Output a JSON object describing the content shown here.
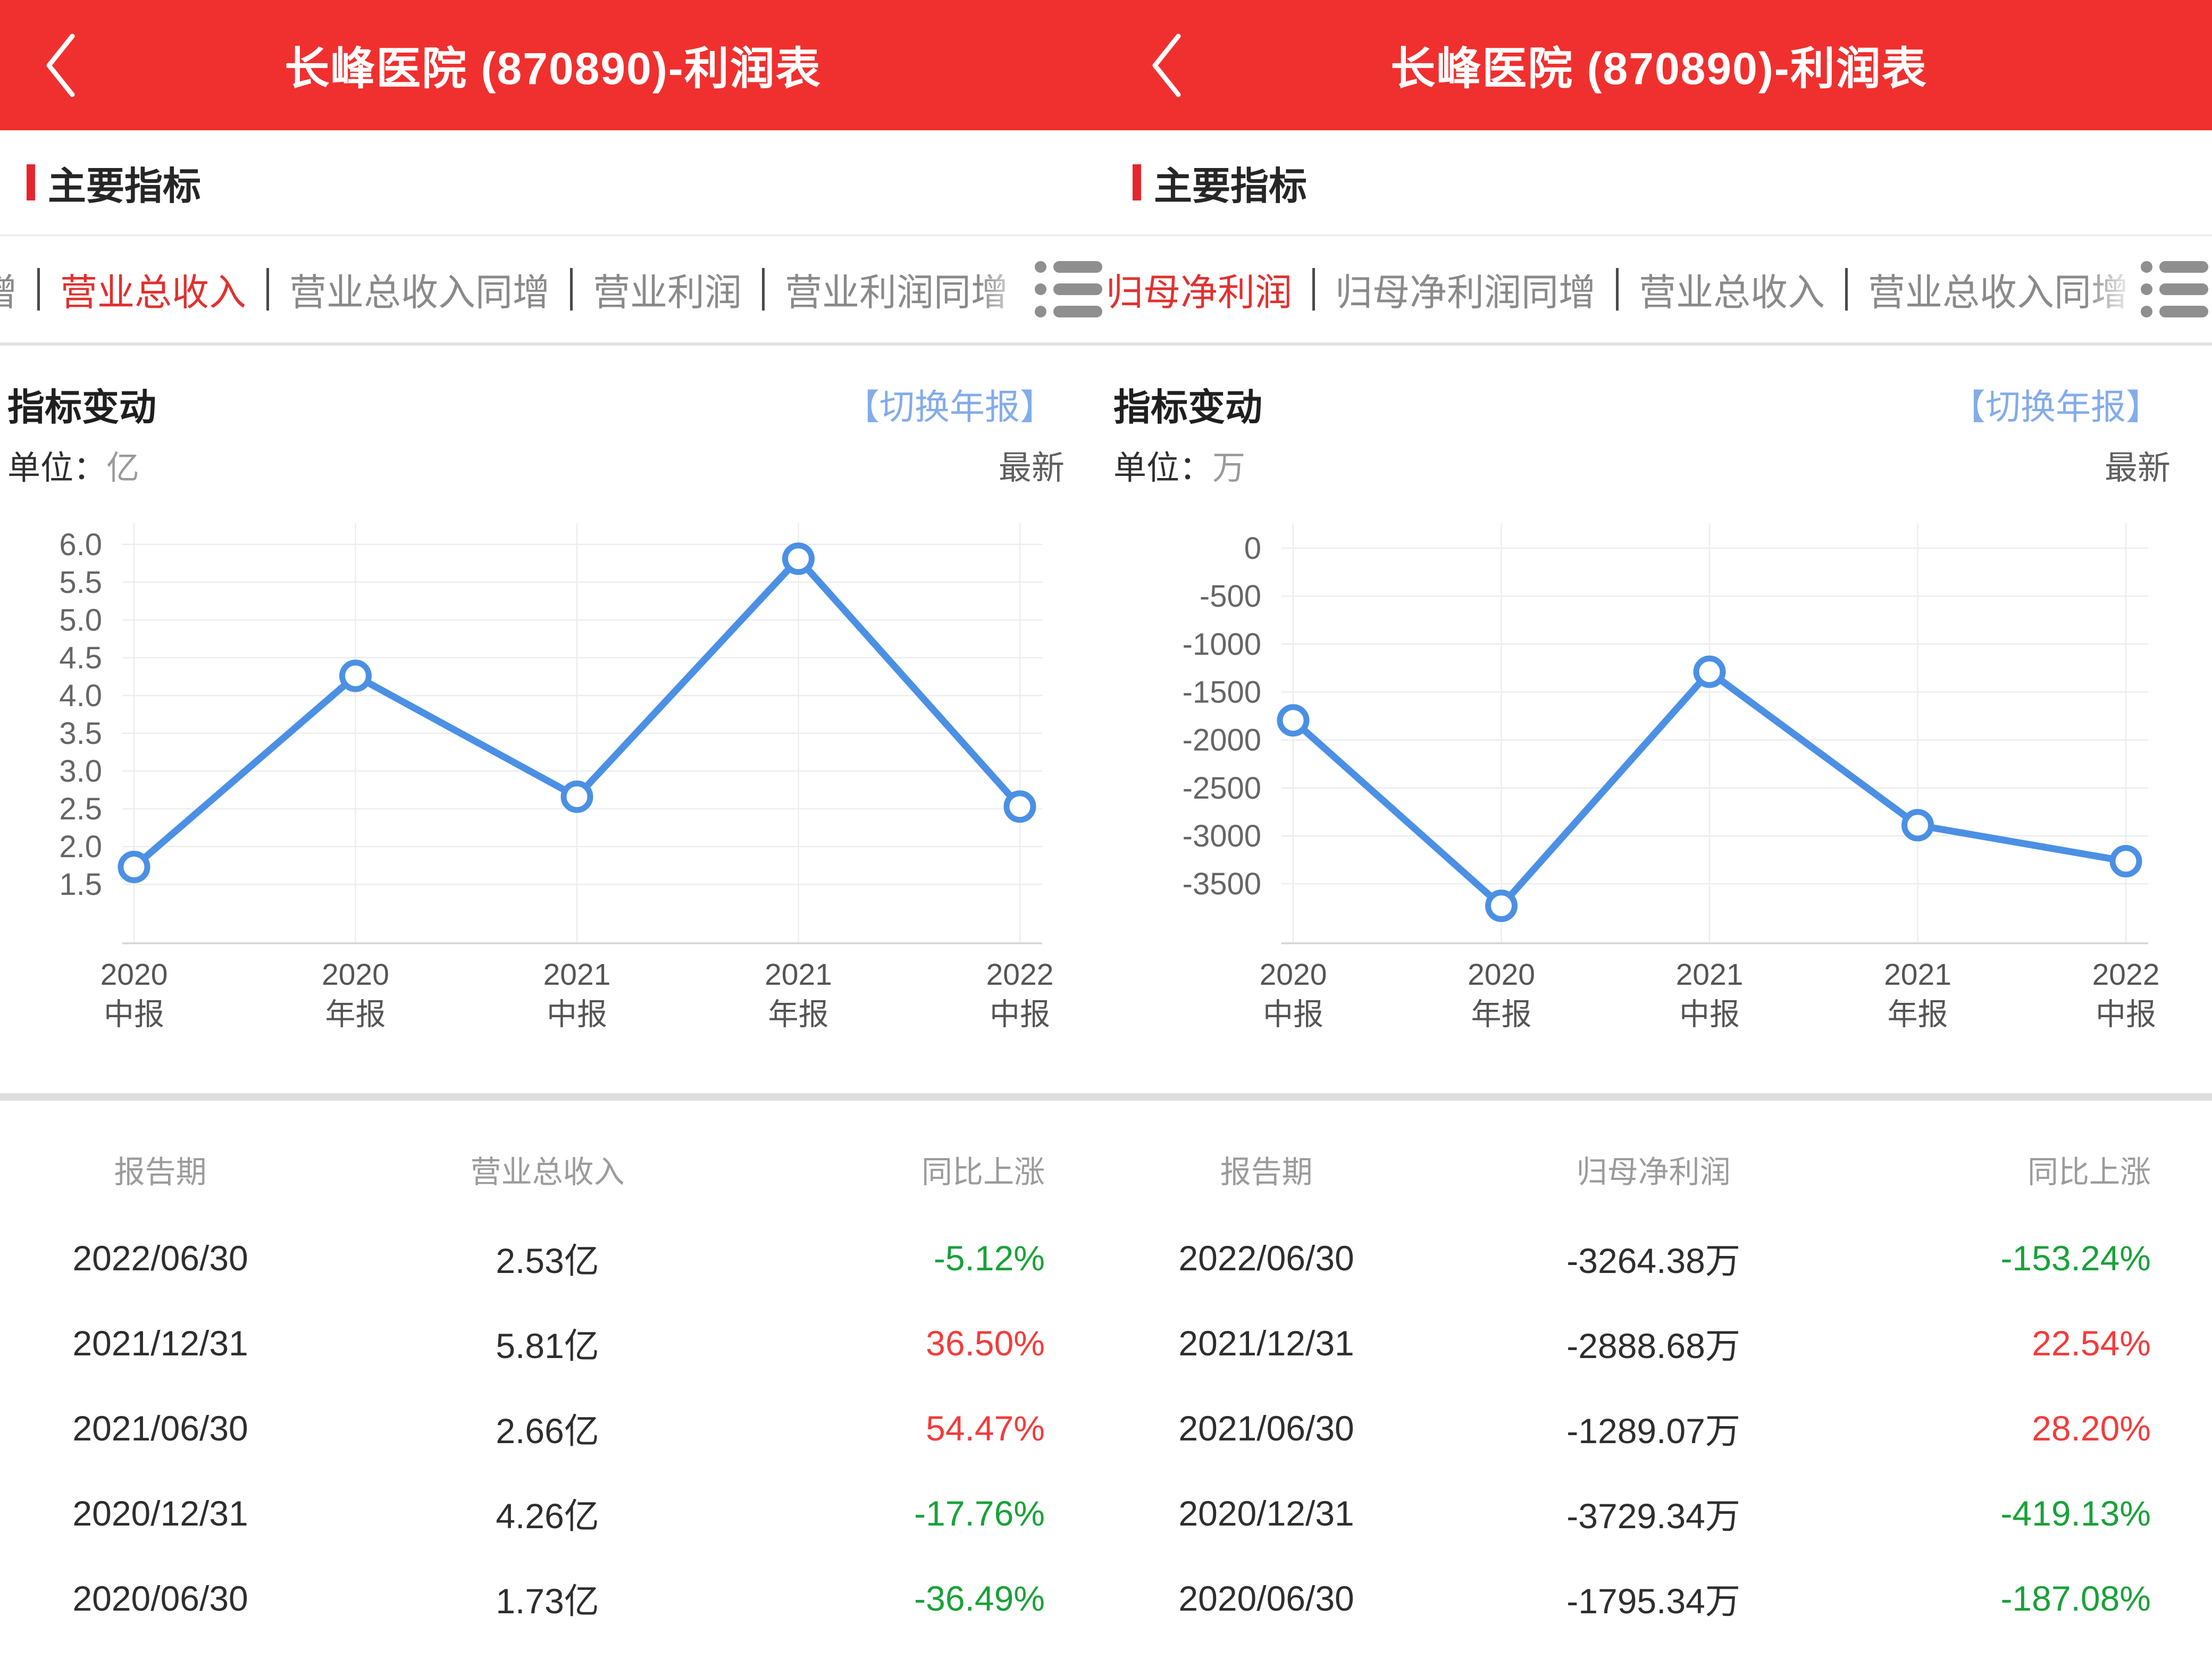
{
  "colors": {
    "header_red": "#f0302f",
    "accent_red": "#e0312f",
    "line_blue": "#4b90e4",
    "link_blue": "#83ace9",
    "pct_up_red": "#f23c3c",
    "pct_down_green": "#19a139"
  },
  "chart_data": [
    {
      "type": "line",
      "title": "指标变动",
      "series_name": "营业总收入",
      "unit": "亿",
      "categories": [
        [
          "2020",
          "中报"
        ],
        [
          "2020",
          "年报"
        ],
        [
          "2021",
          "中报"
        ],
        [
          "2021",
          "年报"
        ],
        [
          "2022",
          "中报"
        ]
      ],
      "values": [
        1.73,
        4.26,
        2.66,
        5.81,
        2.53
      ],
      "yticks": [
        {
          "value": 6.0,
          "label": "6.0"
        },
        {
          "value": 5.5,
          "label": "5.5"
        },
        {
          "value": 5.0,
          "label": "5.0"
        },
        {
          "value": 4.5,
          "label": "4.5"
        },
        {
          "value": 4.0,
          "label": "4.0"
        },
        {
          "value": 3.5,
          "label": "3.5"
        },
        {
          "value": 3.0,
          "label": "3.0"
        },
        {
          "value": 2.5,
          "label": "2.5"
        },
        {
          "value": 2.0,
          "label": "2.0"
        },
        {
          "value": 1.5,
          "label": "1.5"
        }
      ],
      "layout": {
        "label_col": 230,
        "ylim_render": [
          0.72,
          6.28
        ],
        "first_offset": 22,
        "last_offset": 42,
        "grid": true,
        "legend": false
      }
    },
    {
      "type": "line",
      "title": "指标变动",
      "series_name": "归母净利润",
      "unit": "万",
      "categories": [
        [
          "2020",
          "中报"
        ],
        [
          "2020",
          "年报"
        ],
        [
          "2021",
          "中报"
        ],
        [
          "2021",
          "年报"
        ],
        [
          "2022",
          "中报"
        ]
      ],
      "values": [
        -1795.34,
        -3729.34,
        -1289.07,
        -2888.68,
        -3264.38
      ],
      "yticks": [
        {
          "value": 0,
          "label": "0"
        },
        {
          "value": -500,
          "label": "-500"
        },
        {
          "value": -1000,
          "label": "-1000"
        },
        {
          "value": -1500,
          "label": "-1500"
        },
        {
          "value": -2000,
          "label": "-2000"
        },
        {
          "value": -2500,
          "label": "-2500"
        },
        {
          "value": -3000,
          "label": "-3000"
        },
        {
          "value": -3500,
          "label": "-3500"
        }
      ],
      "layout": {
        "label_col": 330,
        "ylim_render": [
          -4120,
          260
        ],
        "first_offset": 22,
        "last_offset": 42,
        "grid": true,
        "legend": false
      }
    }
  ],
  "panels": [
    {
      "header": {
        "title": "长峰医院 (870890)-利润表"
      },
      "section_title": "主要指标",
      "tabs": {
        "left_partial": "增",
        "items": [
          {
            "label": "营业总收入",
            "active": true
          },
          {
            "label": "营业总收入同增",
            "active": false
          },
          {
            "label": "营业利润",
            "active": false
          },
          {
            "label": "营业利润同增",
            "active": false
          }
        ]
      },
      "chart_header": {
        "title": "指标变动",
        "link": "【切换年报】"
      },
      "unit_row": {
        "label": "单位：",
        "unit": "亿",
        "latest": "最新"
      },
      "table": {
        "headers": [
          "报告期",
          "营业总收入",
          "同比上涨"
        ],
        "rows": [
          {
            "date": "2022/06/30",
            "value": "2.53亿",
            "pct": "-5.12%",
            "dir": "down"
          },
          {
            "date": "2021/12/31",
            "value": "5.81亿",
            "pct": "36.50%",
            "dir": "up"
          },
          {
            "date": "2021/06/30",
            "value": "2.66亿",
            "pct": "54.47%",
            "dir": "up"
          },
          {
            "date": "2020/12/31",
            "value": "4.26亿",
            "pct": "-17.76%",
            "dir": "down"
          },
          {
            "date": "2020/06/30",
            "value": "1.73亿",
            "pct": "-36.49%",
            "dir": "down"
          }
        ]
      }
    },
    {
      "header": {
        "title": "长峰医院 (870890)-利润表"
      },
      "section_title": "主要指标",
      "tabs": {
        "left_partial": null,
        "items": [
          {
            "label": "归母净利润",
            "active": true
          },
          {
            "label": "归母净利润同增",
            "active": false
          },
          {
            "label": "营业总收入",
            "active": false
          },
          {
            "label": "营业总收入同增",
            "active": false
          }
        ]
      },
      "chart_header": {
        "title": "指标变动",
        "link": "【切换年报】"
      },
      "unit_row": {
        "label": "单位：",
        "unit": "万",
        "latest": "最新"
      },
      "table": {
        "headers": [
          "报告期",
          "归母净利润",
          "同比上涨"
        ],
        "rows": [
          {
            "date": "2022/06/30",
            "value": "-3264.38万",
            "pct": "-153.24%",
            "dir": "down"
          },
          {
            "date": "2021/12/31",
            "value": "-2888.68万",
            "pct": "22.54%",
            "dir": "up"
          },
          {
            "date": "2021/06/30",
            "value": "-1289.07万",
            "pct": "28.20%",
            "dir": "up"
          },
          {
            "date": "2020/12/31",
            "value": "-3729.34万",
            "pct": "-419.13%",
            "dir": "down"
          },
          {
            "date": "2020/06/30",
            "value": "-1795.34万",
            "pct": "-187.08%",
            "dir": "down"
          }
        ]
      }
    }
  ]
}
